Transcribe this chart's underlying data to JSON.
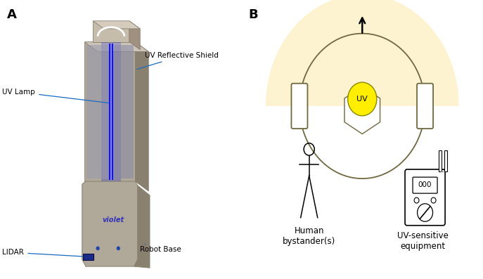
{
  "panel_a_label": "A",
  "panel_b_label": "B",
  "label_uv_reflective_shield": "UV Reflective Shield",
  "label_uv_lamp": "UV Lamp",
  "label_lidar": "LIDAR",
  "label_robot_base": "Robot Base",
  "label_uv": "UV",
  "label_human": "Human\nbystander(s)",
  "label_uv_sensitive": "UV-sensitive\nequipment",
  "robot_body_color": "#b0a898",
  "robot_body_dark": "#8a8070",
  "robot_body_light": "#ccc4b8",
  "blue_lamp_color": "#0000ee",
  "blue_line_color": "#1a6abf",
  "uv_circle_color": "#ffee00",
  "semicircle_fill": "#fdf3d0",
  "annotation_color": "#1a6abf",
  "background_color": "#ffffff",
  "panel_b_circle_color": "#706840"
}
